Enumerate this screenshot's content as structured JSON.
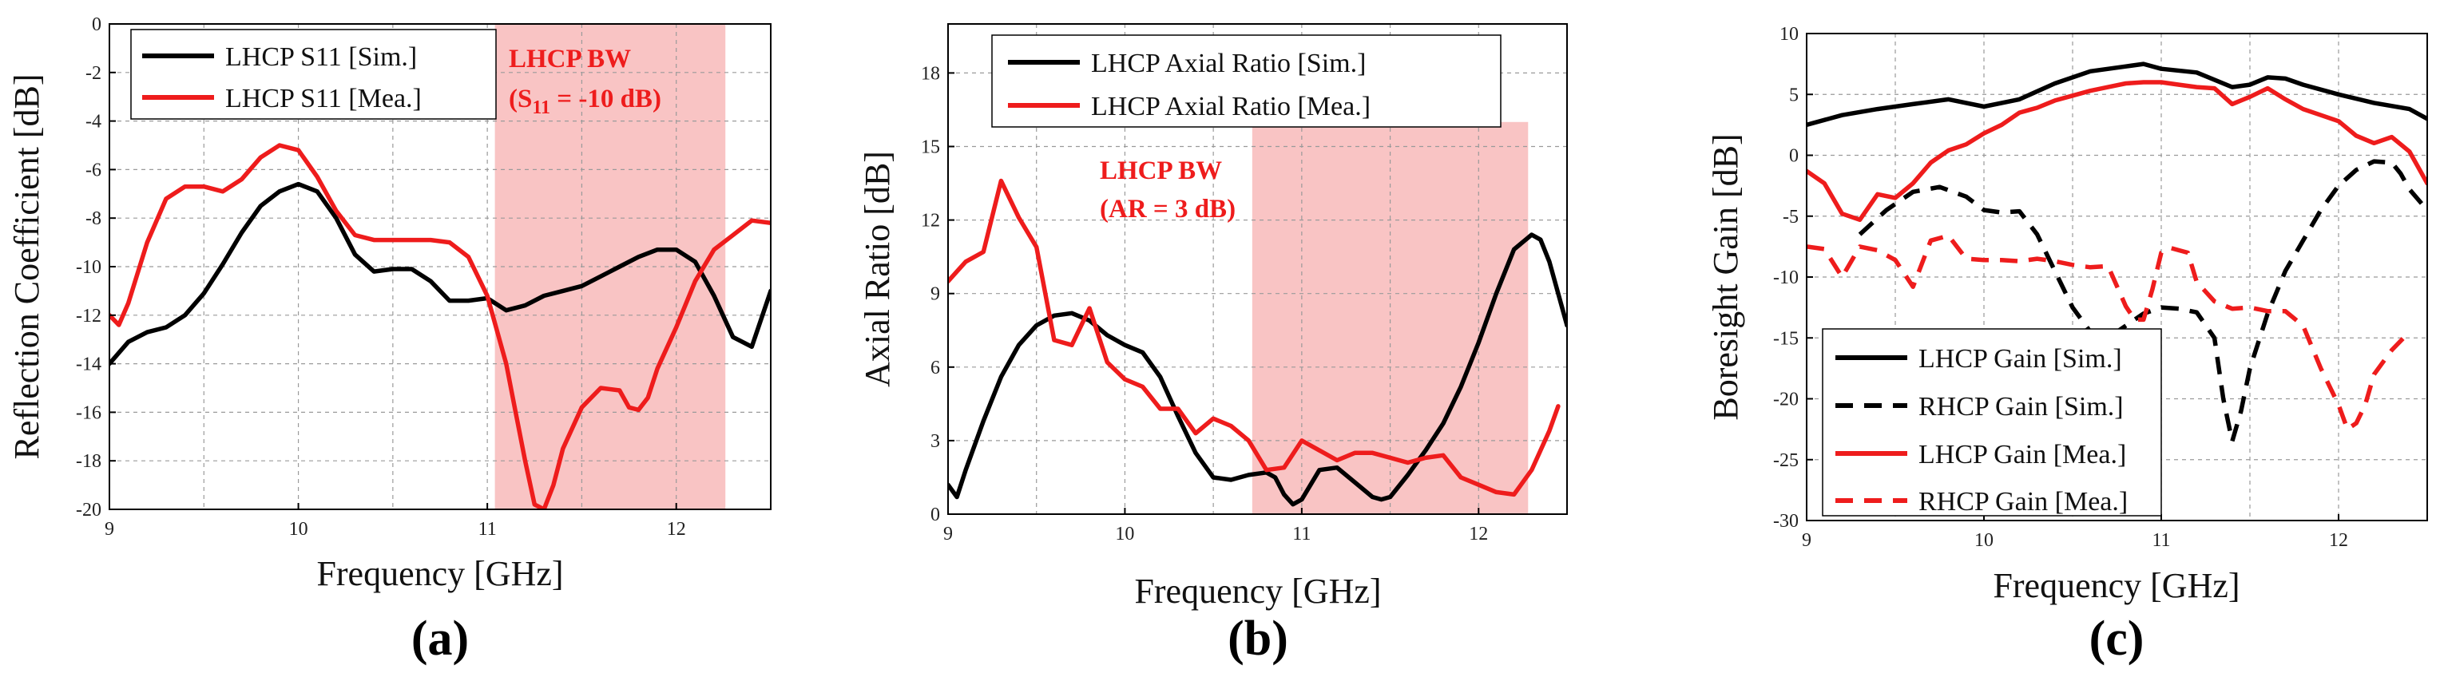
{
  "colors": {
    "sim": "#000000",
    "mea": "#ee1c1c",
    "band": "#f9c4c4",
    "annotation": "#ee1c1c"
  },
  "chart_data": [
    {
      "id": "a",
      "type": "line",
      "caption": "(a)",
      "xlabel": "Frequency [GHz]",
      "ylabel": "Reflection Coefficient [dB]",
      "xlim": [
        9,
        12.5
      ],
      "ylim": [
        -20,
        0
      ],
      "xticks": [
        9,
        10,
        11,
        12
      ],
      "xtick_labels": [
        "9",
        "10",
        "11",
        "12"
      ],
      "yticks": [
        0,
        -2,
        -4,
        -6,
        -8,
        -10,
        -12,
        -14,
        -16,
        -18,
        -20
      ],
      "ytick_labels": [
        "0",
        "-2",
        "-4",
        "-6",
        "-8",
        "-10",
        "-12",
        "-14",
        "-16",
        "-18",
        "-20"
      ],
      "band": [
        11.04,
        12.26
      ],
      "annotation": {
        "line1": "LHCP BW",
        "line2_prefix": "(S",
        "line2_sub": "11",
        "line2_suffix": " = -10 dB)"
      },
      "legend_position": "top-left",
      "series": [
        {
          "name": "LHCP S11 [Sim.]",
          "color": "sim",
          "dash": "solid",
          "x": [
            9,
            9.1,
            9.2,
            9.3,
            9.4,
            9.5,
            9.6,
            9.7,
            9.8,
            9.9,
            10,
            10.1,
            10.2,
            10.3,
            10.4,
            10.5,
            10.6,
            10.7,
            10.8,
            10.9,
            11,
            11.1,
            11.2,
            11.3,
            11.4,
            11.5,
            11.6,
            11.7,
            11.8,
            11.9,
            12,
            12.1,
            12.2,
            12.3,
            12.4,
            12.5
          ],
          "y": [
            -14,
            -13.1,
            -12.7,
            -12.5,
            -12,
            -11.1,
            -9.9,
            -8.6,
            -7.5,
            -6.9,
            -6.6,
            -6.9,
            -8,
            -9.5,
            -10.2,
            -10.1,
            -10.1,
            -10.6,
            -11.4,
            -11.4,
            -11.3,
            -11.8,
            -11.6,
            -11.2,
            -11.0,
            -10.8,
            -10.4,
            -10,
            -9.6,
            -9.3,
            -9.3,
            -9.8,
            -11.2,
            -12.9,
            -13.3,
            -11.0
          ]
        },
        {
          "name": "LHCP S11 [Mea.]",
          "color": "mea",
          "dash": "solid",
          "x": [
            9,
            9.05,
            9.1,
            9.2,
            9.3,
            9.4,
            9.5,
            9.6,
            9.7,
            9.8,
            9.9,
            10,
            10.1,
            10.2,
            10.3,
            10.4,
            10.5,
            10.6,
            10.7,
            10.8,
            10.9,
            11,
            11.1,
            11.15,
            11.2,
            11.25,
            11.3,
            11.35,
            11.4,
            11.5,
            11.6,
            11.7,
            11.75,
            11.8,
            11.85,
            11.9,
            12,
            12.1,
            12.2,
            12.3,
            12.4,
            12.5
          ],
          "y": [
            -12,
            -12.4,
            -11.5,
            -9.0,
            -7.2,
            -6.7,
            -6.7,
            -6.9,
            -6.4,
            -5.5,
            -5.0,
            -5.2,
            -6.3,
            -7.7,
            -8.7,
            -8.9,
            -8.9,
            -8.9,
            -8.9,
            -9.0,
            -9.6,
            -11.2,
            -14.0,
            -16.0,
            -18.0,
            -19.8,
            -20.0,
            -19.0,
            -17.5,
            -15.8,
            -15.0,
            -15.1,
            -15.8,
            -15.9,
            -15.4,
            -14.2,
            -12.5,
            -10.6,
            -9.3,
            -8.7,
            -8.1,
            -8.2
          ]
        }
      ]
    },
    {
      "id": "b",
      "type": "line",
      "caption": "(b)",
      "xlabel": "Frequency [GHz]",
      "ylabel": "Axial Ratio [dB]",
      "xlim": [
        9,
        12.5
      ],
      "ylim": [
        0,
        20
      ],
      "xticks": [
        9,
        10,
        11,
        12
      ],
      "xtick_labels": [
        "9",
        "10",
        "11",
        "12"
      ],
      "yticks": [
        0,
        3,
        6,
        9,
        12,
        15,
        18
      ],
      "ytick_labels": [
        "0",
        "3",
        "6",
        "9",
        "12",
        "15",
        "18"
      ],
      "band": [
        10.72,
        12.28
      ],
      "band_ylim": [
        0,
        16
      ],
      "annotation": {
        "line1": "LHCP BW",
        "line2": "(AR = 3 dB)"
      },
      "legend_position": "top",
      "series": [
        {
          "name": "LHCP Axial Ratio [Sim.]",
          "color": "sim",
          "dash": "solid",
          "x": [
            9,
            9.05,
            9.1,
            9.2,
            9.3,
            9.4,
            9.5,
            9.6,
            9.7,
            9.8,
            9.9,
            10,
            10.1,
            10.2,
            10.3,
            10.4,
            10.5,
            10.6,
            10.7,
            10.8,
            10.85,
            10.9,
            10.95,
            11,
            11.1,
            11.2,
            11.3,
            11.4,
            11.45,
            11.5,
            11.6,
            11.7,
            11.8,
            11.9,
            12,
            12.1,
            12.2,
            12.3,
            12.35,
            12.4,
            12.5
          ],
          "y": [
            1.2,
            0.7,
            1.8,
            3.8,
            5.6,
            6.9,
            7.7,
            8.1,
            8.2,
            7.9,
            7.3,
            6.9,
            6.6,
            5.6,
            4.0,
            2.5,
            1.5,
            1.4,
            1.6,
            1.7,
            1.5,
            0.8,
            0.4,
            0.6,
            1.8,
            1.9,
            1.3,
            0.7,
            0.6,
            0.7,
            1.6,
            2.6,
            3.7,
            5.2,
            7.0,
            9.0,
            10.8,
            11.4,
            11.2,
            10.3,
            7.7
          ]
        },
        {
          "name": "LHCP Axial Ratio [Mea.]",
          "color": "mea",
          "dash": "solid",
          "x": [
            9,
            9.1,
            9.2,
            9.3,
            9.4,
            9.5,
            9.6,
            9.7,
            9.8,
            9.9,
            10,
            10.1,
            10.2,
            10.3,
            10.4,
            10.5,
            10.6,
            10.7,
            10.8,
            10.9,
            11,
            11.1,
            11.2,
            11.3,
            11.4,
            11.5,
            11.6,
            11.7,
            11.8,
            11.9,
            12,
            12.1,
            12.2,
            12.3,
            12.4,
            12.45
          ],
          "y": [
            9.5,
            10.3,
            10.7,
            13.6,
            12.1,
            10.9,
            7.1,
            6.9,
            8.4,
            6.2,
            5.5,
            5.2,
            4.3,
            4.3,
            3.3,
            3.9,
            3.6,
            3.0,
            1.8,
            1.9,
            3.0,
            2.6,
            2.2,
            2.5,
            2.5,
            2.3,
            2.1,
            2.3,
            2.4,
            1.5,
            1.2,
            0.9,
            0.8,
            1.8,
            3.4,
            4.4
          ]
        }
      ]
    },
    {
      "id": "c",
      "type": "line",
      "caption": "(c)",
      "xlabel": "Frequency [GHz]",
      "ylabel": "Boresight Gain [dB]",
      "xlim": [
        9,
        12.5
      ],
      "ylim": [
        -30,
        10
      ],
      "xticks": [
        9,
        10,
        11,
        12
      ],
      "xtick_labels": [
        "9",
        "10",
        "11",
        "12"
      ],
      "yticks": [
        10,
        5,
        0,
        -5,
        -10,
        -15,
        -20,
        -25,
        -30
      ],
      "ytick_labels": [
        "10",
        "5",
        "0",
        "-5",
        "-10",
        "-15",
        "-20",
        "-25",
        "-30"
      ],
      "legend_position": "bottom-left",
      "series": [
        {
          "name": "LHCP Gain [Sim.]",
          "color": "sim",
          "dash": "solid",
          "x": [
            9,
            9.2,
            9.4,
            9.6,
            9.8,
            10,
            10.2,
            10.4,
            10.6,
            10.8,
            10.9,
            11,
            11.2,
            11.4,
            11.5,
            11.6,
            11.7,
            11.8,
            12,
            12.2,
            12.4,
            12.5
          ],
          "y": [
            2.5,
            3.3,
            3.8,
            4.2,
            4.6,
            4.0,
            4.6,
            5.9,
            6.9,
            7.3,
            7.5,
            7.1,
            6.8,
            5.6,
            5.8,
            6.4,
            6.3,
            5.8,
            5.0,
            4.3,
            3.8,
            3.0
          ]
        },
        {
          "name": "RHCP Gain [Sim.]",
          "color": "sim",
          "dash": "dashed",
          "x": [
            9.3,
            9.45,
            9.6,
            9.75,
            9.9,
            10.0,
            10.1,
            10.2,
            10.3,
            10.4,
            10.5,
            10.6,
            10.7,
            10.8,
            10.9,
            11.0,
            11.1,
            11.2,
            11.3,
            11.35,
            11.4,
            11.45,
            11.5,
            11.6,
            11.7,
            11.8,
            11.9,
            12.0,
            12.1,
            12.2,
            12.3,
            12.35,
            12.4,
            12.5
          ],
          "y": [
            -6.5,
            -4.5,
            -3.0,
            -2.6,
            -3.4,
            -4.5,
            -4.7,
            -4.6,
            -6.5,
            -9.5,
            -12.5,
            -14.5,
            -15.0,
            -14.0,
            -13.0,
            -12.5,
            -12.6,
            -12.9,
            -15.0,
            -20.0,
            -23.5,
            -21.0,
            -17.5,
            -13.0,
            -9.5,
            -7.0,
            -4.5,
            -2.5,
            -1.2,
            -0.5,
            -0.6,
            -1.5,
            -2.8,
            -4.5
          ]
        },
        {
          "name": "LHCP Gain [Mea.]",
          "color": "mea",
          "dash": "solid",
          "x": [
            9,
            9.1,
            9.2,
            9.3,
            9.4,
            9.5,
            9.6,
            9.7,
            9.8,
            9.9,
            10,
            10.1,
            10.2,
            10.3,
            10.4,
            10.5,
            10.6,
            10.7,
            10.8,
            10.9,
            11,
            11.1,
            11.2,
            11.3,
            11.4,
            11.5,
            11.6,
            11.7,
            11.8,
            11.9,
            12,
            12.1,
            12.2,
            12.3,
            12.4,
            12.5
          ],
          "y": [
            -1.3,
            -2.3,
            -4.8,
            -5.3,
            -3.2,
            -3.5,
            -2.3,
            -0.6,
            0.4,
            0.9,
            1.8,
            2.5,
            3.5,
            3.9,
            4.5,
            4.9,
            5.3,
            5.6,
            5.9,
            6.0,
            6.0,
            5.8,
            5.6,
            5.5,
            4.2,
            4.8,
            5.5,
            4.6,
            3.8,
            3.3,
            2.8,
            1.6,
            1.0,
            1.5,
            0.3,
            -2.3
          ]
        },
        {
          "name": "RHCP Gain [Mea.]",
          "color": "mea",
          "dash": "dashed",
          "x": [
            9,
            9.1,
            9.2,
            9.3,
            9.4,
            9.5,
            9.6,
            9.7,
            9.8,
            9.9,
            10,
            10.1,
            10.2,
            10.3,
            10.4,
            10.5,
            10.6,
            10.7,
            10.8,
            10.85,
            10.9,
            10.95,
            11.0,
            11.05,
            11.1,
            11.15,
            11.2,
            11.3,
            11.4,
            11.5,
            11.6,
            11.7,
            11.8,
            11.9,
            12,
            12.05,
            12.1,
            12.15,
            12.2,
            12.3,
            12.4
          ],
          "y": [
            -7.5,
            -7.7,
            -10.0,
            -7.5,
            -7.8,
            -8.6,
            -10.8,
            -7.0,
            -6.6,
            -8.5,
            -8.6,
            -8.6,
            -8.7,
            -8.5,
            -8.7,
            -9.0,
            -9.2,
            -9.1,
            -12.4,
            -13.5,
            -13.5,
            -11.0,
            -8.0,
            -7.6,
            -7.8,
            -8.0,
            -10.4,
            -12.0,
            -12.6,
            -12.5,
            -12.8,
            -12.8,
            -14.0,
            -17.5,
            -20.5,
            -22.5,
            -22.0,
            -20.5,
            -18.0,
            -16.0,
            -14.5
          ]
        }
      ]
    }
  ]
}
